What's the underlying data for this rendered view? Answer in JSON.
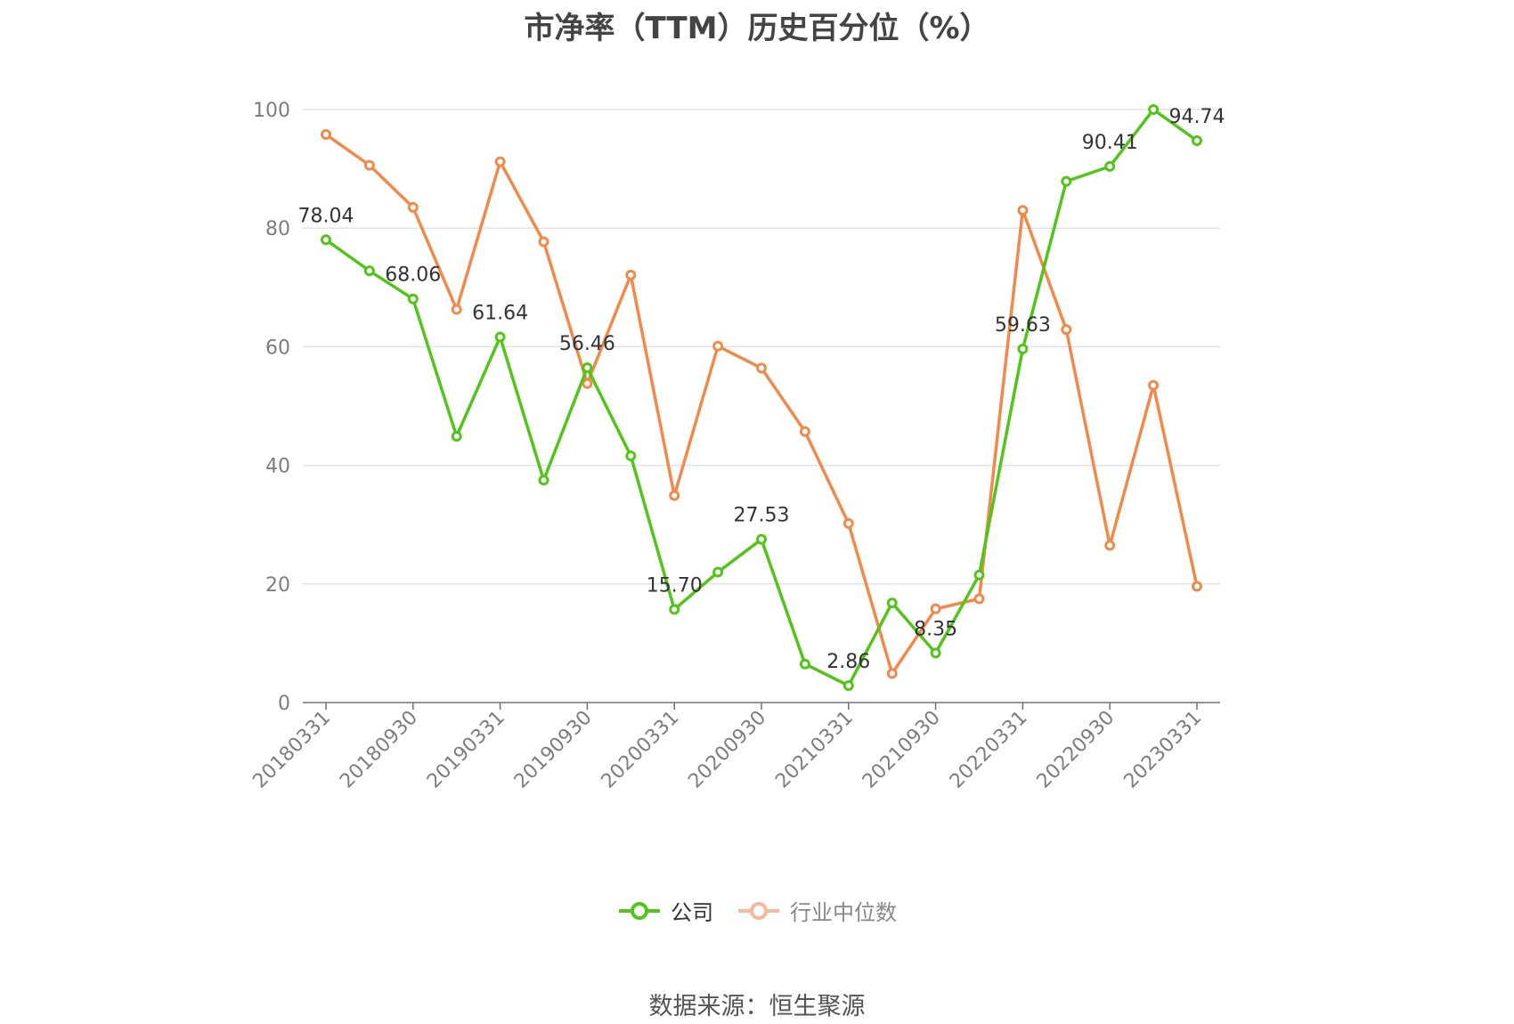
{
  "chart_data": {
    "type": "line",
    "title": "市净率（TTM）历史百分位（%）",
    "xlabel": "",
    "ylabel": "",
    "ylim": [
      0,
      100
    ],
    "yticks": [
      0,
      20,
      40,
      60,
      80,
      100
    ],
    "grid": true,
    "legend_position": "bottom",
    "x": [
      "20180331",
      "20180630",
      "20180930",
      "20181231",
      "20190331",
      "20190630",
      "20190930",
      "20191231",
      "20200331",
      "20200630",
      "20200930",
      "20201231",
      "20210331",
      "20210630",
      "20210930",
      "20211231",
      "20220331",
      "20220630",
      "20220930",
      "20221231",
      "20230331"
    ],
    "xtick_labels": [
      "20180331",
      "20180930",
      "20190331",
      "20190930",
      "20200331",
      "20200930",
      "20210331",
      "20210930",
      "20220331",
      "20220930",
      "20230331"
    ],
    "series": [
      {
        "name": "公司",
        "color": "#52c41a",
        "values": [
          78.04,
          72.8,
          68.06,
          44.9,
          61.64,
          37.5,
          56.46,
          41.6,
          15.7,
          22.0,
          27.53,
          6.5,
          2.86,
          16.8,
          8.35,
          21.5,
          59.63,
          87.9,
          90.41,
          100.0,
          94.74
        ],
        "labels": [
          "78.04",
          "",
          "68.06",
          "",
          "61.64",
          "",
          "56.46",
          "",
          "15.70",
          "",
          "27.53",
          "",
          "2.86",
          "",
          "8.35",
          "",
          "59.63",
          "",
          "90.41",
          "",
          "94.74"
        ]
      },
      {
        "name": "行业中位数",
        "color": "#f08a4b",
        "values": [
          95.8,
          90.6,
          83.5,
          66.3,
          91.2,
          77.7,
          53.8,
          72.1,
          34.9,
          60.1,
          56.4,
          45.7,
          30.2,
          4.9,
          15.8,
          17.5,
          83.0,
          62.9,
          26.5,
          53.5,
          19.6
        ]
      }
    ]
  },
  "legend": {
    "company": "公司",
    "industry": "行业中位数",
    "company_color": "#52c41a",
    "industry_color": "#f08a4b",
    "industry_text_color": "#888888"
  },
  "source": "数据来源：恒生聚源"
}
